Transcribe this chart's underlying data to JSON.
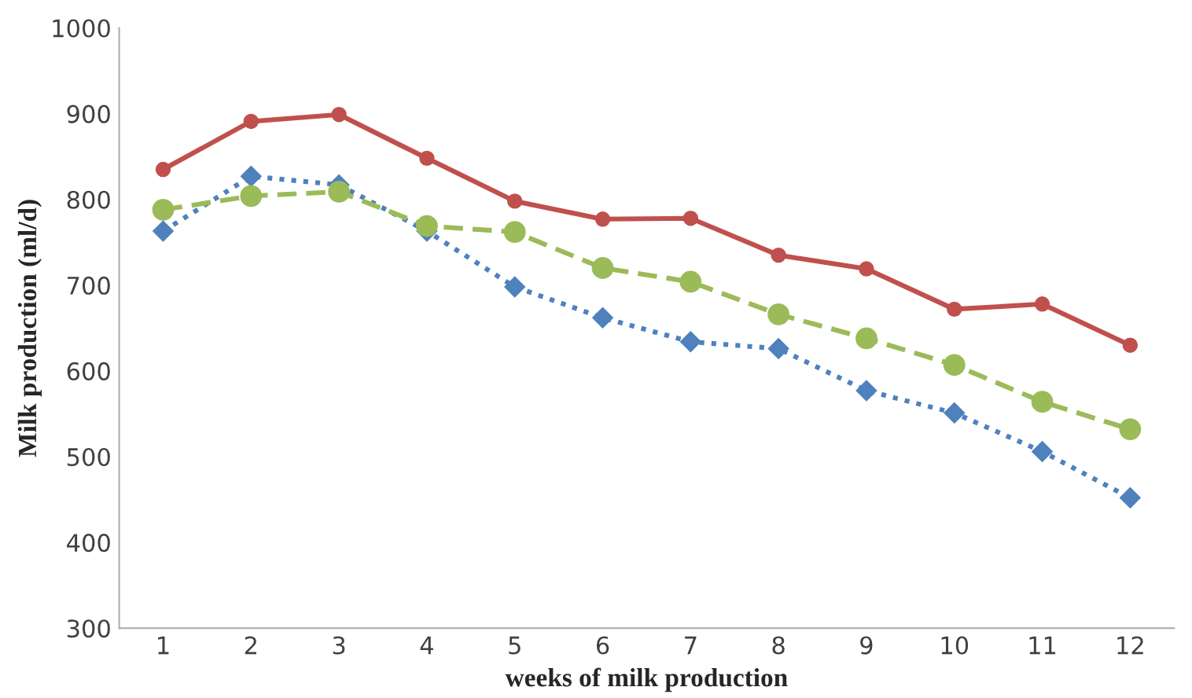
{
  "chart_data": {
    "type": "line",
    "xlabel": "weeks of milk production",
    "ylabel": "Milk production (ml/d)",
    "categories": [
      "1",
      "2",
      "3",
      "4",
      "5",
      "6",
      "7",
      "8",
      "9",
      "10",
      "11",
      "12"
    ],
    "series": [
      {
        "color": "#c0504d",
        "marker": "circle",
        "line_style": "solid",
        "values": [
          835,
          891,
          899,
          848,
          798,
          777,
          778,
          735,
          719,
          672,
          678,
          630
        ]
      },
      {
        "color": "#4f81bd",
        "marker": "diamond",
        "line_style": "dotted",
        "values": [
          763,
          827,
          817,
          763,
          698,
          662,
          634,
          626,
          577,
          551,
          506,
          452
        ]
      },
      {
        "color": "#9bbb59",
        "marker": "circle",
        "line_style": "dashed",
        "values": [
          788,
          804,
          809,
          769,
          762,
          720,
          704,
          666,
          638,
          607,
          564,
          532
        ]
      }
    ],
    "ylim": [
      300,
      1000
    ],
    "yticks": [
      300,
      400,
      500,
      600,
      700,
      800,
      900,
      1000
    ],
    "grid": false,
    "legend": false
  }
}
